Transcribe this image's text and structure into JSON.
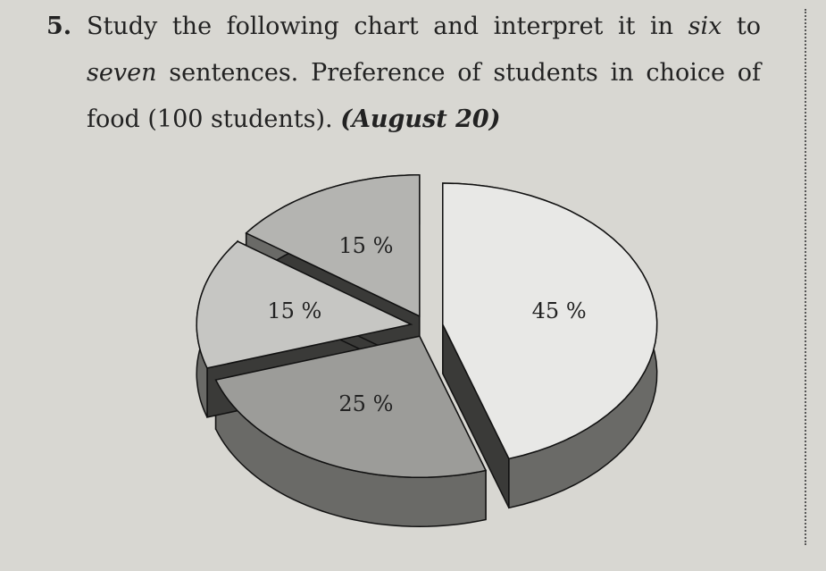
{
  "question": {
    "number": "5.",
    "parts": [
      "Study the following chart and interpret it in ",
      "six",
      " to ",
      "seven",
      " sentences. Preference of students in choice of food (100 students). ",
      "(August 20)"
    ]
  },
  "chart_data": {
    "type": "pie",
    "values": [
      45,
      25,
      15,
      15
    ],
    "value_labels": [
      "45 %",
      "25 %",
      "15 %",
      "15 %"
    ],
    "colors": [
      "#e8e8e6",
      "#9c9c99",
      "#c6c6c3",
      "#b4b4b1"
    ]
  }
}
